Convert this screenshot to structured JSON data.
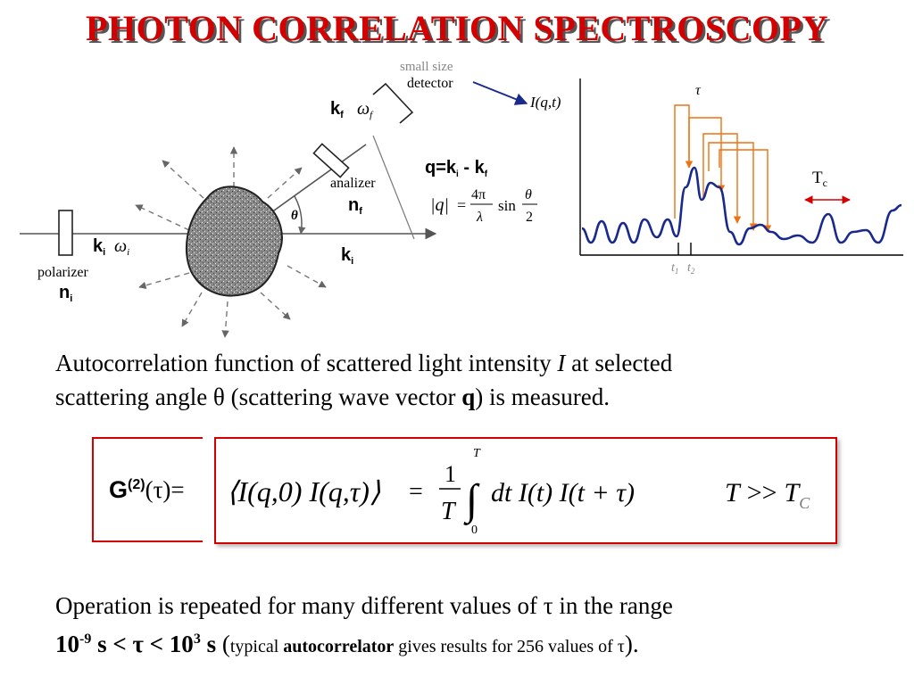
{
  "title": "PHOTON CORRELATION SPECTROSCOPY",
  "diagram": {
    "detector_small": "small size",
    "detector_label": "detector",
    "kf": "k",
    "kf_sub": "f",
    "omega_f": "ω",
    "omega_f_sub": "f",
    "analizer": "analizer",
    "nf": "n",
    "nf_sub": "f",
    "q_eq_lhs": "q=k",
    "q_eq_i": "i",
    "q_eq_minus": " - k",
    "q_eq_f": "f",
    "q_mag_lhs": "|q|",
    "q_mag_eq": "=",
    "q_mag_num": "4π",
    "q_mag_den": "λ",
    "q_mag_sin": "sin",
    "q_mag_theta": "θ",
    "q_mag_two": "2",
    "theta": "θ",
    "ki_in": "k",
    "ki_in_sub": "i",
    "omega_i": "ω",
    "omega_i_sub": "i",
    "ki_out": "k",
    "ki_out_sub": "i",
    "polarizer": "polarizer",
    "ni": "n",
    "ni_sub": "i"
  },
  "signal": {
    "ylabel": "I(q,t)",
    "tau": "τ",
    "tc": "T",
    "tc_sub": "c",
    "t1": "t",
    "t1_sub": "1",
    "t2": "t",
    "t2_sub": "2",
    "line_color": "#1a2a8c",
    "arrow_color": "#f07010"
  },
  "paragraph1": {
    "line1_a": "Autocorrelation function of scattered light intensity ",
    "line1_I": "I",
    "line1_b": " at selected",
    "line2_a": "scattering angle θ (scattering wave vector ",
    "line2_q": "q",
    "line2_b": ") is measured."
  },
  "formula": {
    "g2_base": "G",
    "g2_sup": "(2)",
    "g2_tau": "(τ)=",
    "lhs": "⟨I(q,0) I(q,τ)⟩",
    "equals": "=",
    "frac_num": "1",
    "frac_den": "T",
    "int_upper": "T",
    "int_lower": "0",
    "integrand": "dt I(t) I(t + τ)",
    "cond_T": "T",
    "cond_gg": ">>",
    "cond_Tc": "T",
    "cond_Tc_sub": "C"
  },
  "paragraph2": {
    "line1": "Operation is repeated for many different values of τ in the range",
    "range_a": "10",
    "range_a_sup": "-9",
    "range_b": " s < τ  < 10",
    "range_b_sup": "3",
    "range_c": " s",
    "paren_open": " (",
    "typical": "typical ",
    "autocorrelator": "autocorrelator",
    "rest": " gives results for 256 values of τ",
    "paren_close": ")."
  }
}
